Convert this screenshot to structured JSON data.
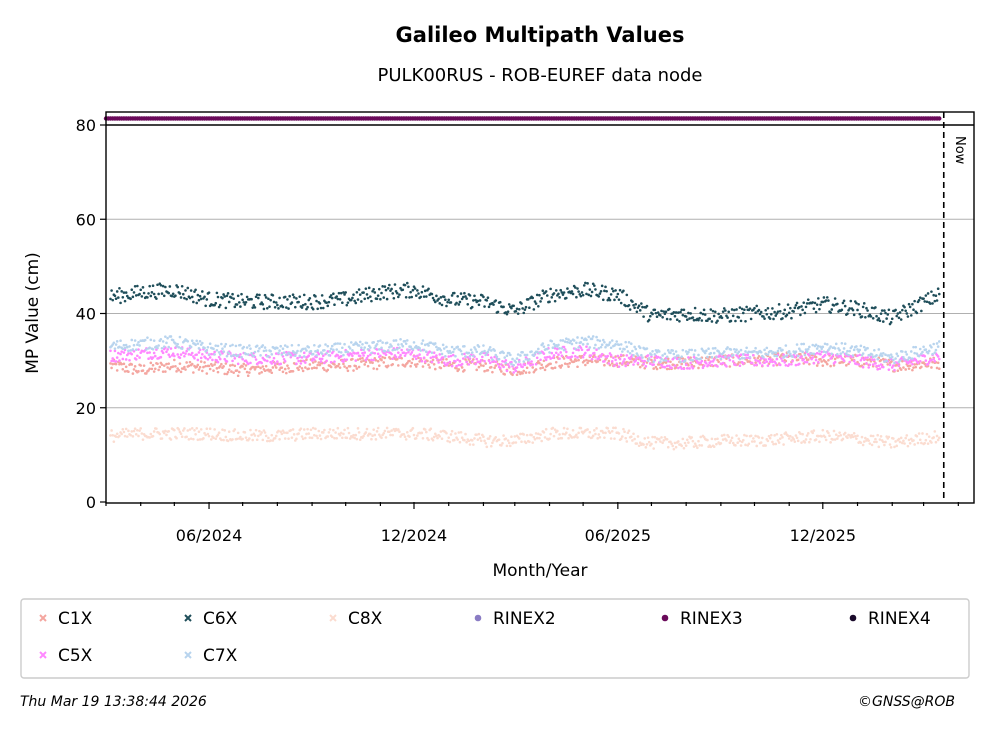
{
  "chart_data": {
    "type": "scatter",
    "title": "Galileo Multipath Values",
    "subtitle": "PULK00RUS - ROB-EUREF data node",
    "xlabel": "Month/Year",
    "ylabel": "MP Value (cm)",
    "xlim": [
      "2024-03-01",
      "2026-04-15"
    ],
    "ylim": [
      0,
      80
    ],
    "x_ticks": [
      {
        "date": "2024-06-01",
        "label": "06/2024"
      },
      {
        "date": "2024-12-01",
        "label": "12/2024"
      },
      {
        "date": "2025-06-01",
        "label": "06/2025"
      },
      {
        "date": "2025-12-01",
        "label": "12/2025"
      }
    ],
    "y_ticks": [
      0,
      20,
      40,
      60,
      80
    ],
    "grid": "horizontal",
    "now_marker": {
      "date": "2026-03-19",
      "label": "Now"
    },
    "legend_position": "bottom",
    "series": [
      {
        "name": "C1X",
        "marker": "x",
        "color": "#f4a6a0",
        "points": [
          [
            "2024-03-05",
            29
          ],
          [
            "2024-04-01",
            28
          ],
          [
            "2024-05-01",
            29
          ],
          [
            "2024-06-01",
            28.5
          ],
          [
            "2024-07-01",
            28
          ],
          [
            "2024-08-01",
            28.5
          ],
          [
            "2024-09-01",
            29
          ],
          [
            "2024-10-01",
            29
          ],
          [
            "2024-11-01",
            29.5
          ],
          [
            "2024-12-01",
            30
          ],
          [
            "2025-01-01",
            29
          ],
          [
            "2025-02-01",
            29
          ],
          [
            "2025-03-01",
            28
          ],
          [
            "2025-04-01",
            29.5
          ],
          [
            "2025-05-01",
            30
          ],
          [
            "2025-06-01",
            30
          ],
          [
            "2025-07-01",
            29.5
          ],
          [
            "2025-08-01",
            29.5
          ],
          [
            "2025-09-01",
            30
          ],
          [
            "2025-10-01",
            30
          ],
          [
            "2025-11-01",
            30.5
          ],
          [
            "2025-12-01",
            30
          ],
          [
            "2026-01-01",
            30
          ],
          [
            "2026-02-01",
            29
          ],
          [
            "2026-03-15",
            29.5
          ]
        ]
      },
      {
        "name": "C5X",
        "marker": "x",
        "color": "#ff88ff",
        "points": [
          [
            "2024-03-05",
            31
          ],
          [
            "2024-04-01",
            31.5
          ],
          [
            "2024-05-01",
            32
          ],
          [
            "2024-06-01",
            31
          ],
          [
            "2024-07-01",
            30.5
          ],
          [
            "2024-08-01",
            30.5
          ],
          [
            "2024-09-01",
            30.5
          ],
          [
            "2024-10-01",
            31
          ],
          [
            "2024-11-01",
            31.5
          ],
          [
            "2024-12-01",
            31.5
          ],
          [
            "2025-01-01",
            30
          ],
          [
            "2025-02-01",
            30.5
          ],
          [
            "2025-03-01",
            28.5
          ],
          [
            "2025-04-01",
            31.5
          ],
          [
            "2025-05-01",
            32
          ],
          [
            "2025-06-01",
            30
          ],
          [
            "2025-07-01",
            30
          ],
          [
            "2025-08-01",
            29.5
          ],
          [
            "2025-09-01",
            30
          ],
          [
            "2025-10-01",
            30
          ],
          [
            "2025-11-01",
            30
          ],
          [
            "2025-12-01",
            31
          ],
          [
            "2026-01-01",
            30
          ],
          [
            "2026-02-01",
            29
          ],
          [
            "2026-03-15",
            31
          ]
        ]
      },
      {
        "name": "C6X",
        "marker": "x",
        "color": "#1f4e5a",
        "points": [
          [
            "2024-03-05",
            43.5
          ],
          [
            "2024-04-01",
            44.5
          ],
          [
            "2024-05-01",
            45
          ],
          [
            "2024-06-01",
            43
          ],
          [
            "2024-07-01",
            42.5
          ],
          [
            "2024-08-01",
            42.5
          ],
          [
            "2024-09-01",
            42.5
          ],
          [
            "2024-10-01",
            43
          ],
          [
            "2024-11-01",
            44.5
          ],
          [
            "2024-12-01",
            45
          ],
          [
            "2025-01-01",
            43
          ],
          [
            "2025-02-01",
            42.5
          ],
          [
            "2025-03-01",
            40.5
          ],
          [
            "2025-04-01",
            44
          ],
          [
            "2025-05-01",
            45
          ],
          [
            "2025-06-01",
            44
          ],
          [
            "2025-07-01",
            39.5
          ],
          [
            "2025-08-01",
            40
          ],
          [
            "2025-09-01",
            39.5
          ],
          [
            "2025-10-01",
            40
          ],
          [
            "2025-11-01",
            40.5
          ],
          [
            "2025-12-01",
            42
          ],
          [
            "2026-01-01",
            41
          ],
          [
            "2026-02-01",
            39
          ],
          [
            "2026-03-15",
            44
          ]
        ]
      },
      {
        "name": "C7X",
        "marker": "x",
        "color": "#b8d4ee",
        "points": [
          [
            "2024-03-05",
            33
          ],
          [
            "2024-04-01",
            33.5
          ],
          [
            "2024-05-01",
            34
          ],
          [
            "2024-06-01",
            32.5
          ],
          [
            "2024-07-01",
            32
          ],
          [
            "2024-08-01",
            32
          ],
          [
            "2024-09-01",
            32
          ],
          [
            "2024-10-01",
            32.5
          ],
          [
            "2024-11-01",
            33
          ],
          [
            "2024-12-01",
            33.5
          ],
          [
            "2025-01-01",
            32
          ],
          [
            "2025-02-01",
            32
          ],
          [
            "2025-03-01",
            30
          ],
          [
            "2025-04-01",
            33
          ],
          [
            "2025-05-01",
            34
          ],
          [
            "2025-06-01",
            33.5
          ],
          [
            "2025-07-01",
            31
          ],
          [
            "2025-08-01",
            31
          ],
          [
            "2025-09-01",
            31.5
          ],
          [
            "2025-10-01",
            31.5
          ],
          [
            "2025-11-01",
            32
          ],
          [
            "2025-12-01",
            33
          ],
          [
            "2026-01-01",
            32
          ],
          [
            "2026-02-01",
            30.5
          ],
          [
            "2026-03-15",
            33
          ]
        ]
      },
      {
        "name": "C8X",
        "marker": "x",
        "color": "#fbdcd0",
        "points": [
          [
            "2024-03-05",
            14
          ],
          [
            "2024-04-01",
            14.5
          ],
          [
            "2024-05-01",
            14.5
          ],
          [
            "2024-06-01",
            14.5
          ],
          [
            "2024-07-01",
            14
          ],
          [
            "2024-08-01",
            14
          ],
          [
            "2024-09-01",
            14.5
          ],
          [
            "2024-10-01",
            14.5
          ],
          [
            "2024-11-01",
            14.5
          ],
          [
            "2024-12-01",
            14.5
          ],
          [
            "2025-01-01",
            14
          ],
          [
            "2025-02-01",
            13
          ],
          [
            "2025-03-01",
            13
          ],
          [
            "2025-04-01",
            14.5
          ],
          [
            "2025-05-01",
            14.5
          ],
          [
            "2025-06-01",
            14.5
          ],
          [
            "2025-07-01",
            12.5
          ],
          [
            "2025-08-01",
            12.5
          ],
          [
            "2025-09-01",
            13
          ],
          [
            "2025-10-01",
            13
          ],
          [
            "2025-11-01",
            13.5
          ],
          [
            "2025-12-01",
            14
          ],
          [
            "2026-01-01",
            13.5
          ],
          [
            "2026-02-01",
            12.5
          ],
          [
            "2026-03-15",
            14
          ]
        ]
      },
      {
        "name": "RINEX2",
        "marker": "o",
        "color": "#8a7cc4",
        "points": []
      },
      {
        "name": "RINEX3",
        "marker": "o",
        "color": "#6a0a5a",
        "points": [
          [
            "2024-03-01",
            81.5
          ],
          [
            "2026-03-15",
            81.5
          ]
        ]
      },
      {
        "name": "RINEX4",
        "marker": "o",
        "color": "#1a0a2a",
        "points": []
      }
    ]
  },
  "footer": {
    "timestamp": "Thu Mar 19 13:38:44 2026",
    "credit": "©GNSS@ROB"
  }
}
